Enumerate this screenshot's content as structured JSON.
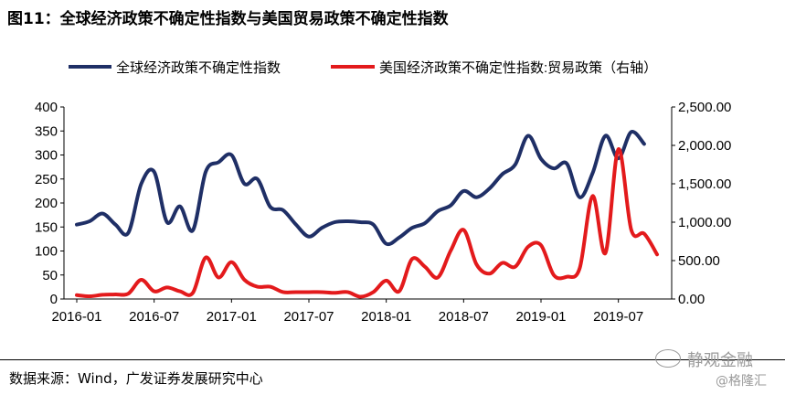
{
  "header": {
    "title": "图11：全球经济政策不确定性指数与美国贸易政策不确定性指数"
  },
  "footer": {
    "source": "数据来源：Wind，广发证券发展研究中心",
    "watermark_main": "静观金融",
    "watermark_sub": "@格隆汇"
  },
  "colors": {
    "series_global": "#1f2f66",
    "series_us": "#e31a1c"
  },
  "chart_data": {
    "type": "line",
    "title": "图11：全球经济政策不确定性指数与美国贸易政策不确定性指数",
    "x": [
      "2016-01",
      "2016-02",
      "2016-03",
      "2016-04",
      "2016-05",
      "2016-06",
      "2016-07",
      "2016-08",
      "2016-09",
      "2016-10",
      "2016-11",
      "2016-12",
      "2017-01",
      "2017-02",
      "2017-03",
      "2017-04",
      "2017-05",
      "2017-06",
      "2017-07",
      "2017-08",
      "2017-09",
      "2017-10",
      "2017-11",
      "2017-12",
      "2018-01",
      "2018-02",
      "2018-03",
      "2018-04",
      "2018-05",
      "2018-06",
      "2018-07",
      "2018-08",
      "2018-09",
      "2018-10",
      "2018-11",
      "2018-12",
      "2019-01",
      "2019-02",
      "2019-03",
      "2019-04",
      "2019-05",
      "2019-06",
      "2019-07",
      "2019-08",
      "2019-09",
      "2019-10"
    ],
    "x_ticks": [
      "2016-01",
      "2016-07",
      "2017-01",
      "2017-07",
      "2018-01",
      "2018-07",
      "2019-01",
      "2019-07"
    ],
    "legend": [
      "全球经济政策不确定性指数",
      "美国经济政策不确定性指数:贸易政策（右轴）"
    ],
    "legend_position": "top",
    "y_left": {
      "lim": [
        0,
        400
      ],
      "ticks": [
        "0",
        "50",
        "100",
        "150",
        "200",
        "250",
        "300",
        "350",
        "400"
      ]
    },
    "y_right": {
      "lim": [
        0,
        2500
      ],
      "ticks": [
        "0.00",
        "500.00",
        "1,000.00",
        "1,500.00",
        "2,000.00",
        "2,500.00"
      ]
    },
    "series": [
      {
        "name": "全球经济政策不确定性指数",
        "axis": "left",
        "values": [
          155,
          162,
          178,
          155,
          138,
          240,
          265,
          160,
          193,
          143,
          265,
          285,
          300,
          240,
          250,
          192,
          185,
          155,
          130,
          148,
          160,
          162,
          160,
          155,
          115,
          128,
          148,
          158,
          183,
          195,
          225,
          212,
          230,
          260,
          280,
          340,
          292,
          272,
          282,
          212,
          262,
          340,
          293,
          348,
          323,
          null
        ]
      },
      {
        "name": "美国经济政策不确定性指数:贸易政策（右轴）",
        "axis": "right",
        "values": [
          50,
          35,
          55,
          60,
          70,
          250,
          100,
          150,
          100,
          80,
          540,
          280,
          480,
          250,
          160,
          160,
          90,
          90,
          90,
          90,
          80,
          90,
          30,
          90,
          240,
          100,
          520,
          420,
          280,
          630,
          900,
          450,
          330,
          470,
          420,
          680,
          700,
          310,
          290,
          400,
          1340,
          600,
          1950,
          900,
          850,
          580
        ]
      }
    ]
  }
}
